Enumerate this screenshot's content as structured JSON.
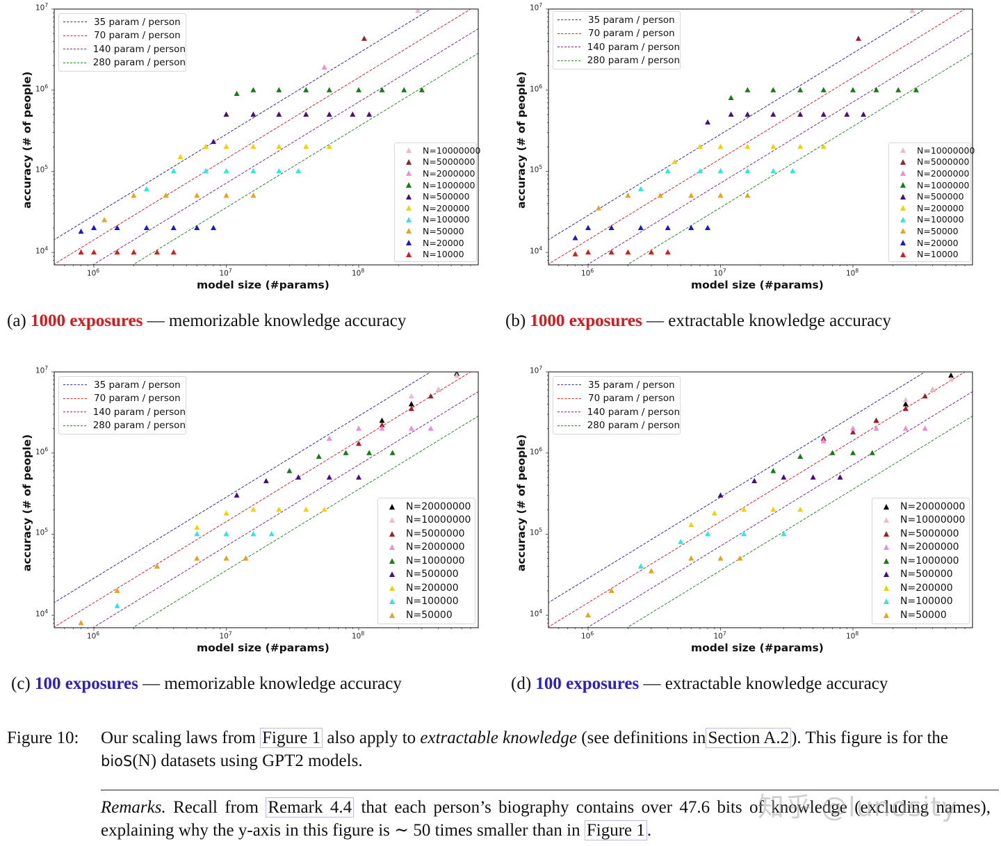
{
  "panels": [
    {
      "id": "a",
      "caption_prefix": "(a)",
      "caption_highlight": "1000 exposures",
      "caption_highlight_color": "#d9171d",
      "caption_rest": " — memorizable knowledge accuracy",
      "xlabel": "model size (#params)",
      "ylabel": "accuracy (# of people)"
    },
    {
      "id": "b",
      "caption_prefix": "(b)",
      "caption_highlight": "1000 exposures",
      "caption_highlight_color": "#d9171d",
      "caption_rest": " — extractable knowledge accuracy",
      "xlabel": "model size (#params)",
      "ylabel": "accuracy (# of people)"
    },
    {
      "id": "c",
      "caption_prefix": "(c)",
      "caption_highlight": "100 exposures",
      "caption_highlight_color": "#2b1fc9",
      "caption_rest": " — memorizable knowledge accuracy",
      "xlabel": "model size (#params)",
      "ylabel": "accuracy (# of people)"
    },
    {
      "id": "d",
      "caption_prefix": "(d)",
      "caption_highlight": "100 exposures",
      "caption_highlight_color": "#2b1fc9",
      "caption_rest": " — extractable knowledge accuracy",
      "xlabel": "model size (#params)",
      "ylabel": "accuracy (# of people)"
    }
  ],
  "line_legend": [
    {
      "label": "35 param / person",
      "color": "#2b2b9e"
    },
    {
      "label": "70 param / person",
      "color": "#d62728"
    },
    {
      "label": "140 param / person",
      "color": "#7b2d8e"
    },
    {
      "label": "280 param / person",
      "color": "#2a8a2a"
    }
  ],
  "n_legend_1000": [
    {
      "label": "N=10000000",
      "color": "#f4b8c8"
    },
    {
      "label": "N=5000000",
      "color": "#a01c2c"
    },
    {
      "label": "N=2000000",
      "color": "#e88fd6"
    },
    {
      "label": "N=1000000",
      "color": "#1a7a1a"
    },
    {
      "label": "N=500000",
      "color": "#4b0d7d"
    },
    {
      "label": "N=200000",
      "color": "#f2d00a"
    },
    {
      "label": "N=100000",
      "color": "#2ee6e6"
    },
    {
      "label": "N=50000",
      "color": "#e8a21f"
    },
    {
      "label": "N=20000",
      "color": "#1a1acc"
    },
    {
      "label": "N=10000",
      "color": "#dd1a1a"
    }
  ],
  "n_legend_100": [
    {
      "label": "N=20000000",
      "color": "#000000"
    },
    {
      "label": "N=10000000",
      "color": "#f4b8c8"
    },
    {
      "label": "N=5000000",
      "color": "#a01c2c"
    },
    {
      "label": "N=2000000",
      "color": "#e88fd6"
    },
    {
      "label": "N=1000000",
      "color": "#1a7a1a"
    },
    {
      "label": "N=500000",
      "color": "#4b0d7d"
    },
    {
      "label": "N=200000",
      "color": "#f2d00a"
    },
    {
      "label": "N=100000",
      "color": "#2ee6e6"
    },
    {
      "label": "N=50000",
      "color": "#e8a21f"
    }
  ],
  "axis_ticks": {
    "x": [
      "10^6",
      "10^7",
      "10^8"
    ],
    "y": [
      "10^4",
      "10^5",
      "10^6",
      "10^7"
    ]
  },
  "figure_caption": {
    "label": "Figure 10:",
    "text_1": "Our scaling laws from",
    "ref_1": "Figure 1",
    "text_2": "also apply to",
    "emph": "extractable knowledge",
    "text_3": "(see definitions in",
    "ref_2": "Section A.2",
    "text_4": "). This figure is for the",
    "dataset": "bioS",
    "dataset_arg": "(N)",
    "text_5": "datasets using GPT2 models."
  },
  "remarks": {
    "label": "Remarks.",
    "text_1": "Recall from",
    "ref_1": "Remark 4.4",
    "text_2": "that each person’s biography contains over 47.6 bits of knowledge (excluding names), explaining why the y-axis in this figure is ∼ 50 times smaller than in",
    "ref_2": "Figure 1",
    "text_3": "."
  },
  "watermark": "知乎 @lunosity",
  "chart_data": [
    {
      "panel": "a",
      "type": "scatter",
      "title": "(a) 1000 exposures — memorizable knowledge accuracy",
      "xlabel": "model size (#params)",
      "ylabel": "accuracy (# of people)",
      "xscale": "log",
      "yscale": "log",
      "xlim": [
        500000,
        750000000
      ],
      "ylim": [
        7000,
        10000000
      ],
      "reference_lines": [
        {
          "name": "35 param / person",
          "slope_params_per_person": 35,
          "color": "#2b2b9e"
        },
        {
          "name": "70 param / person",
          "slope_params_per_person": 70,
          "color": "#d62728"
        },
        {
          "name": "140 param / person",
          "slope_params_per_person": 140,
          "color": "#7b2d8e"
        },
        {
          "name": "280 param / person",
          "slope_params_per_person": 280,
          "color": "#2a8a2a"
        }
      ],
      "series": [
        {
          "name": "N=10000000",
          "x": [
            280000000
          ],
          "y": [
            9500000
          ]
        },
        {
          "name": "N=5000000",
          "x": [
            110000000
          ],
          "y": [
            4300000
          ]
        },
        {
          "name": "N=2000000",
          "x": [
            55000000
          ],
          "y": [
            1900000
          ]
        },
        {
          "name": "N=1000000",
          "x": [
            12000000,
            16000000,
            25000000,
            40000000,
            60000000,
            100000000,
            150000000,
            220000000,
            300000000
          ],
          "y": [
            900000,
            1000000,
            1000000,
            1000000,
            1000000,
            1000000,
            1000000,
            1000000,
            1000000
          ]
        },
        {
          "name": "N=500000",
          "x": [
            8000000,
            10000000,
            16000000,
            25000000,
            40000000,
            60000000,
            90000000,
            120000000
          ],
          "y": [
            230000,
            500000,
            500000,
            500000,
            500000,
            500000,
            500000,
            500000
          ]
        },
        {
          "name": "N=200000",
          "x": [
            4500000,
            7000000,
            10000000,
            16000000,
            25000000,
            40000000,
            60000000
          ],
          "y": [
            150000,
            200000,
            200000,
            200000,
            200000,
            200000,
            200000
          ]
        },
        {
          "name": "N=100000",
          "x": [
            2500000,
            4000000,
            7000000,
            10000000,
            16000000,
            25000000,
            35000000
          ],
          "y": [
            60000,
            100000,
            100000,
            100000,
            100000,
            100000,
            100000
          ]
        },
        {
          "name": "N=50000",
          "x": [
            1200000,
            2000000,
            3500000,
            6000000,
            10000000,
            16000000
          ],
          "y": [
            25000,
            50000,
            50000,
            50000,
            50000,
            50000
          ]
        },
        {
          "name": "N=20000",
          "x": [
            800000,
            1000000,
            1500000,
            2500000,
            4000000,
            6000000,
            8000000
          ],
          "y": [
            18000,
            20000,
            20000,
            20000,
            20000,
            20000,
            20000
          ]
        },
        {
          "name": "N=10000",
          "x": [
            800000,
            1000000,
            1500000,
            2000000,
            3000000,
            4000000
          ],
          "y": [
            10000,
            10000,
            10000,
            10000,
            10000,
            10000
          ]
        }
      ]
    },
    {
      "panel": "b",
      "type": "scatter",
      "title": "(b) 1000 exposures — extractable knowledge accuracy",
      "xlabel": "model size (#params)",
      "ylabel": "accuracy (# of people)",
      "xscale": "log",
      "yscale": "log",
      "xlim": [
        500000,
        750000000
      ],
      "ylim": [
        7000,
        10000000
      ],
      "series": [
        {
          "name": "N=10000000",
          "x": [
            280000000
          ],
          "y": [
            9500000
          ]
        },
        {
          "name": "N=5000000",
          "x": [
            110000000
          ],
          "y": [
            4300000
          ]
        },
        {
          "name": "N=1000000",
          "x": [
            12000000,
            16000000,
            25000000,
            40000000,
            60000000,
            100000000,
            150000000,
            220000000,
            300000000
          ],
          "y": [
            800000,
            1000000,
            1000000,
            1000000,
            1000000,
            1000000,
            1000000,
            1000000,
            1000000
          ]
        },
        {
          "name": "N=500000",
          "x": [
            8000000,
            12000000,
            16000000,
            25000000,
            40000000,
            60000000,
            90000000,
            120000000
          ],
          "y": [
            400000,
            500000,
            500000,
            500000,
            500000,
            500000,
            500000,
            500000
          ]
        },
        {
          "name": "N=200000",
          "x": [
            4500000,
            7000000,
            10000000,
            16000000,
            25000000,
            40000000,
            60000000
          ],
          "y": [
            130000,
            200000,
            200000,
            200000,
            200000,
            200000,
            200000
          ]
        },
        {
          "name": "N=100000",
          "x": [
            2500000,
            4000000,
            7000000,
            10000000,
            16000000,
            25000000,
            35000000
          ],
          "y": [
            60000,
            100000,
            100000,
            100000,
            100000,
            100000,
            100000
          ]
        },
        {
          "name": "N=50000",
          "x": [
            1200000,
            2000000,
            3500000,
            6000000,
            10000000,
            16000000
          ],
          "y": [
            35000,
            50000,
            50000,
            50000,
            50000,
            50000
          ]
        },
        {
          "name": "N=20000",
          "x": [
            800000,
            1000000,
            1500000,
            2500000,
            4000000,
            6000000,
            8000000
          ],
          "y": [
            15000,
            20000,
            20000,
            20000,
            20000,
            20000,
            20000
          ]
        },
        {
          "name": "N=10000",
          "x": [
            800000,
            1000000,
            1500000,
            2000000,
            3000000,
            4000000
          ],
          "y": [
            9500,
            10000,
            10000,
            10000,
            10000,
            10000
          ]
        }
      ]
    },
    {
      "panel": "c",
      "type": "scatter",
      "title": "(c) 100 exposures — memorizable knowledge accuracy",
      "xlabel": "model size (#params)",
      "ylabel": "accuracy (# of people)",
      "xscale": "log",
      "yscale": "log",
      "xlim": [
        500000,
        750000000
      ],
      "ylim": [
        7000,
        10000000
      ],
      "series": [
        {
          "name": "N=20000000",
          "x": [
            150000000,
            250000000,
            400000000,
            550000000
          ],
          "y": [
            2500000,
            4000000,
            6000000,
            9500000
          ]
        },
        {
          "name": "N=10000000",
          "x": [
            250000000,
            400000000,
            550000000
          ],
          "y": [
            5000000,
            6000000,
            9000000
          ]
        },
        {
          "name": "N=5000000",
          "x": [
            100000000,
            150000000,
            250000000,
            350000000
          ],
          "y": [
            1300000,
            2200000,
            3500000,
            5000000
          ]
        },
        {
          "name": "N=2000000",
          "x": [
            60000000,
            100000000,
            150000000,
            250000000,
            350000000
          ],
          "y": [
            1500000,
            2000000,
            2000000,
            2000000,
            2000000
          ]
        },
        {
          "name": "N=1000000",
          "x": [
            30000000,
            50000000,
            80000000,
            120000000,
            180000000
          ],
          "y": [
            600000,
            900000,
            1000000,
            1000000,
            1000000
          ]
        },
        {
          "name": "N=500000",
          "x": [
            12000000,
            20000000,
            35000000,
            60000000,
            100000000
          ],
          "y": [
            300000,
            450000,
            500000,
            500000,
            500000
          ]
        },
        {
          "name": "N=200000",
          "x": [
            6000000,
            10000000,
            16000000,
            25000000,
            40000000,
            55000000
          ],
          "y": [
            120000,
            180000,
            200000,
            200000,
            200000,
            200000
          ]
        },
        {
          "name": "N=100000",
          "x": [
            1500000,
            3000000,
            6000000,
            10000000,
            16000000,
            22000000
          ],
          "y": [
            13000,
            40000,
            100000,
            100000,
            100000,
            100000
          ]
        },
        {
          "name": "N=50000",
          "x": [
            800000,
            1500000,
            3000000,
            6000000,
            10000000,
            14000000
          ],
          "y": [
            8000,
            20000,
            40000,
            50000,
            50000,
            50000
          ]
        }
      ]
    },
    {
      "panel": "d",
      "type": "scatter",
      "title": "(d) 100 exposures — extractable knowledge accuracy",
      "xlabel": "model size (#params)",
      "ylabel": "accuracy (# of people)",
      "xscale": "log",
      "yscale": "log",
      "xlim": [
        500000,
        750000000
      ],
      "ylim": [
        7000,
        10000000
      ],
      "series": [
        {
          "name": "N=20000000",
          "x": [
            150000000,
            250000000,
            400000000,
            550000000
          ],
          "y": [
            2500000,
            4000000,
            6000000,
            9000000
          ]
        },
        {
          "name": "N=10000000",
          "x": [
            250000000,
            400000000,
            550000000
          ],
          "y": [
            4500000,
            6000000,
            8000000
          ]
        },
        {
          "name": "N=5000000",
          "x": [
            60000000,
            100000000,
            150000000,
            250000000,
            350000000
          ],
          "y": [
            1500000,
            1800000,
            2500000,
            3500000,
            5000000
          ]
        },
        {
          "name": "N=2000000",
          "x": [
            60000000,
            100000000,
            150000000,
            250000000,
            350000000
          ],
          "y": [
            1400000,
            2000000,
            2000000,
            2000000,
            2000000
          ]
        },
        {
          "name": "N=1000000",
          "x": [
            25000000,
            40000000,
            70000000,
            100000000,
            140000000
          ],
          "y": [
            600000,
            900000,
            1000000,
            1000000,
            1000000
          ]
        },
        {
          "name": "N=500000",
          "x": [
            10000000,
            18000000,
            30000000,
            50000000,
            80000000
          ],
          "y": [
            300000,
            450000,
            500000,
            500000,
            500000
          ]
        },
        {
          "name": "N=200000",
          "x": [
            6000000,
            9000000,
            15000000,
            25000000,
            40000000
          ],
          "y": [
            130000,
            180000,
            200000,
            200000,
            200000
          ]
        },
        {
          "name": "N=100000",
          "x": [
            2500000,
            5000000,
            8000000,
            15000000,
            30000000
          ],
          "y": [
            40000,
            80000,
            100000,
            100000,
            100000
          ]
        },
        {
          "name": "N=50000",
          "x": [
            1000000,
            1500000,
            3000000,
            6000000,
            10000000,
            14000000
          ],
          "y": [
            10000,
            20000,
            35000,
            50000,
            50000,
            50000
          ]
        }
      ]
    }
  ]
}
